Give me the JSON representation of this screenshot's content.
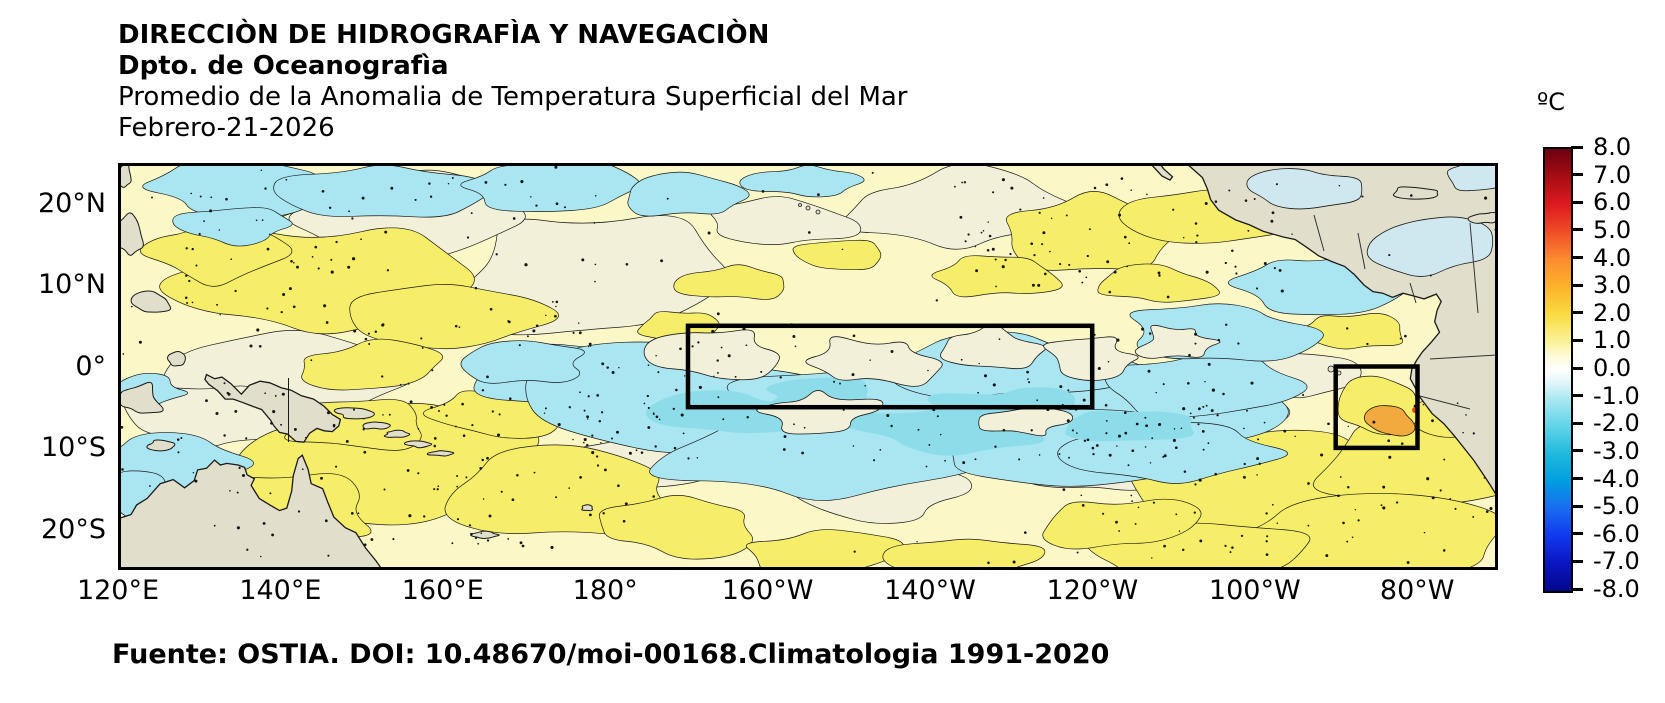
{
  "header": {
    "line1": "DIRECCIÒN DE HIDROGRAFÌA Y NAVEGACIÒN",
    "line2": "Dpto. de Oceanografìa",
    "line3": "Promedio de la Anomalia de Temperatura Superficial del Mar",
    "line4": "Febrero-21-2026"
  },
  "footer": {
    "source": "Fuente: OSTIA. DOI: 10.48670/moi-00168.Climatologia 1991-2020"
  },
  "map": {
    "x_ticks": [
      "120°E",
      "140°E",
      "160°E",
      "180°",
      "160°W",
      "140°W",
      "120°W",
      "100°W",
      "80°W"
    ],
    "y_ticks": [
      "20°N",
      "10°N",
      "0°",
      "10°S",
      "20°S"
    ]
  },
  "colorbar": {
    "title": "ºC",
    "tick_labels": [
      "8.0",
      "7.0",
      "6.0",
      "5.0",
      "4.0",
      "3.0",
      "2.0",
      "1.0",
      "0.0",
      "-1.0",
      "-2.0",
      "-3.0",
      "-4.0",
      "-5.0",
      "-6.0",
      "-7.0",
      "-8.0"
    ],
    "gradient": [
      {
        "v": 8,
        "c": "#6b010f"
      },
      {
        "v": 7,
        "c": "#a60d14"
      },
      {
        "v": 6,
        "c": "#dc1a1f"
      },
      {
        "v": 5,
        "c": "#f04d27"
      },
      {
        "v": 4,
        "c": "#fb8c30"
      },
      {
        "v": 3,
        "c": "#fdb32b"
      },
      {
        "v": 2,
        "c": "#f9dc43"
      },
      {
        "v": 1,
        "c": "#faf39b"
      },
      {
        "v": 0.5,
        "c": "#fdfbd9"
      },
      {
        "v": 0,
        "c": "#ffffff"
      },
      {
        "v": -0.5,
        "c": "#dff5f8"
      },
      {
        "v": -1,
        "c": "#aee9f2"
      },
      {
        "v": -2,
        "c": "#63d5e8"
      },
      {
        "v": -3,
        "c": "#22bade"
      },
      {
        "v": -4,
        "c": "#009fdf"
      },
      {
        "v": -5,
        "c": "#1a6cf0"
      },
      {
        "v": -6,
        "c": "#1239ee"
      },
      {
        "v": -7,
        "c": "#0b16c0"
      },
      {
        "v": -8,
        "c": "#03078b"
      }
    ]
  },
  "palette": {
    "ocean_base": "#fbf7c6",
    "warm_patch": "#f6ed69",
    "cool_patch": "#a9e6f1",
    "cool_deep": "#8cdde9",
    "near_zero": "#f3f0da",
    "pale_water": "#cfe8ef",
    "orange_patch": "#f2a93d",
    "coast_red": "#e0481e",
    "land": "#e1decc",
    "coast_line": "#1a1a1a",
    "region_box": "#000000"
  }
}
